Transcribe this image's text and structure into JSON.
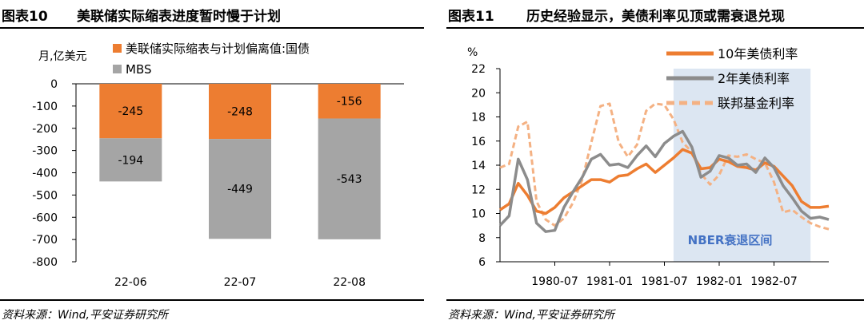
{
  "left": {
    "figure_number": "图表10",
    "title": "美联储实际缩表进度暂时慢于计划",
    "source": "资料来源：Wind,平安证券研究所"
  },
  "right": {
    "figure_number": "图表11",
    "title": "历史经验显示，美债利率见顶或需衰退兑现",
    "source": "资料来源：Wind,平安证券研究所"
  },
  "chart_data": [
    {
      "type": "bar",
      "stacked": true,
      "unit_label": "月,亿美元",
      "categories": [
        "22-06",
        "22-07",
        "22-08"
      ],
      "series": [
        {
          "name": "美联储实际缩表与计划偏离值:国债",
          "values": [
            -245,
            -248,
            -156
          ],
          "color": "#ED7D31"
        },
        {
          "name": "MBS",
          "values": [
            -194,
            -449,
            -543
          ],
          "color": "#A5A5A5"
        }
      ],
      "ylim": [
        -800,
        0
      ],
      "yticks": [
        0,
        -100,
        -200,
        -300,
        -400,
        -500,
        -600,
        -700,
        -800
      ],
      "legend_position": "top",
      "grid": false
    },
    {
      "type": "line",
      "unit_label": "%",
      "xlim": [
        "1980-01",
        "1983-01"
      ],
      "xticks": [
        "1980-07",
        "1981-01",
        "1981-07",
        "1982-01",
        "1982-07"
      ],
      "ylim": [
        6,
        22
      ],
      "yticks": [
        6,
        8,
        10,
        12,
        14,
        16,
        18,
        20,
        22
      ],
      "legend_position": "top-right",
      "grid": false,
      "shaded_region": {
        "label": "NBER衰退区间",
        "start": "1981-08",
        "end": "1982-11",
        "color": "#DCE6F2"
      },
      "x": [
        "1980-01",
        "1980-02",
        "1980-03",
        "1980-04",
        "1980-05",
        "1980-06",
        "1980-07",
        "1980-08",
        "1980-09",
        "1980-10",
        "1980-11",
        "1980-12",
        "1981-01",
        "1981-02",
        "1981-03",
        "1981-04",
        "1981-05",
        "1981-06",
        "1981-07",
        "1981-08",
        "1981-09",
        "1981-10",
        "1981-11",
        "1981-12",
        "1982-01",
        "1982-02",
        "1982-03",
        "1982-04",
        "1982-05",
        "1982-06",
        "1982-07",
        "1982-08",
        "1982-09",
        "1982-10",
        "1982-11",
        "1982-12",
        "1983-01"
      ],
      "series": [
        {
          "name": "10年美债利率",
          "color": "#ED7D31",
          "values": [
            10.3,
            10.8,
            12.5,
            11.5,
            10.2,
            10.0,
            10.5,
            11.3,
            11.8,
            12.3,
            12.8,
            12.8,
            12.6,
            13.1,
            13.2,
            13.7,
            14.1,
            13.4,
            14.0,
            14.6,
            15.3,
            15.0,
            13.7,
            13.8,
            14.5,
            14.3,
            13.9,
            13.8,
            13.6,
            14.2,
            13.9,
            13.1,
            12.3,
            11.0,
            10.5,
            10.5,
            10.6
          ]
        },
        {
          "name": "2年美债利率",
          "color": "#8C8C8C",
          "values": [
            9.0,
            9.8,
            14.5,
            12.8,
            9.2,
            8.5,
            8.6,
            10.5,
            11.8,
            13.0,
            14.5,
            14.9,
            14.0,
            14.1,
            13.8,
            14.8,
            15.6,
            14.7,
            15.8,
            16.4,
            16.8,
            15.5,
            13.0,
            13.5,
            14.8,
            14.6,
            14.0,
            14.1,
            13.4,
            14.6,
            13.8,
            12.3,
            11.3,
            10.2,
            9.6,
            9.7,
            9.5
          ]
        },
        {
          "name": "联邦基金利率",
          "color": "#F4B183",
          "values": [
            13.8,
            14.1,
            17.2,
            17.6,
            11.0,
            9.5,
            9.0,
            9.6,
            10.9,
            12.8,
            15.9,
            18.9,
            19.1,
            15.9,
            14.7,
            15.7,
            18.5,
            19.1,
            19.0,
            17.8,
            15.9,
            15.1,
            13.3,
            12.4,
            13.2,
            14.8,
            14.7,
            14.9,
            14.5,
            14.2,
            12.6,
            10.1,
            10.3,
            9.7,
            9.2,
            8.9,
            8.7
          ]
        }
      ]
    }
  ]
}
